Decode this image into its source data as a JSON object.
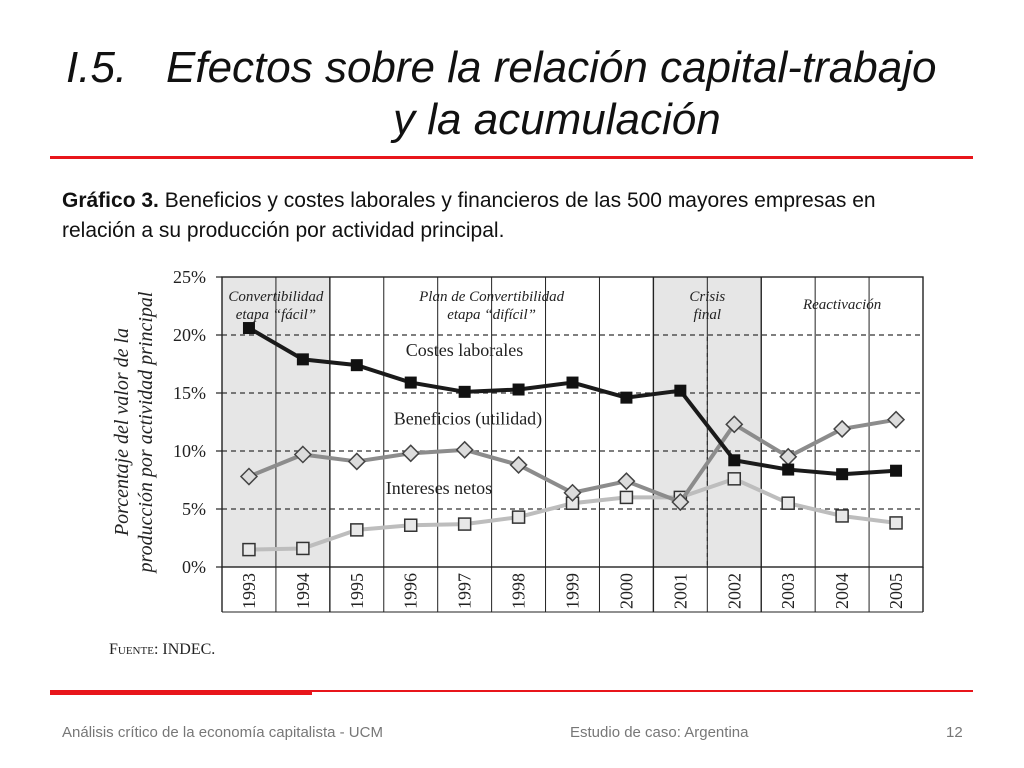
{
  "slide": {
    "title_number": "I.5.",
    "title_line1": "Efectos sobre la relación capital-trabajo",
    "title_line2": "y la acumulación",
    "caption_bold": "Gráfico 3.",
    "caption_text": " Beneficios y costes laborales y financieros de las 500 mayores empresas en relación a su producción por actividad principal.",
    "source_label": "Fuente",
    "source_value": ": INDEC.",
    "footer_left": "Análisis crítico de la economía capitalista - UCM",
    "footer_center": "Estudio de caso: Argentina",
    "footer_page": "12",
    "accent_color": "#e8151b"
  },
  "chart_data": {
    "type": "line",
    "title": "",
    "xlabel": "",
    "ylabel": "Porcentaje del valor de la producción por actividad principal",
    "ylabel_line1": "Porcentaje del valor de la",
    "ylabel_line2": "producción por actividad principal",
    "x": [
      "1993",
      "1994",
      "1995",
      "1996",
      "1997",
      "1998",
      "1999",
      "2000",
      "2001",
      "2002",
      "2003",
      "2004",
      "2005"
    ],
    "ylim": [
      0,
      25
    ],
    "yticks": [
      "0%",
      "5%",
      "10%",
      "15%",
      "20%",
      "25%"
    ],
    "grid": "dashed horizontal lines at 5% steps, solid vertical separators between years",
    "periods": [
      {
        "label1": "Convertibilidad",
        "label2": "etapa “fácil”",
        "start": "1993",
        "end": "1994",
        "shaded": true
      },
      {
        "label1": "Plan de Convertibilidad",
        "label2": "etapa “difícil”",
        "start": "1995",
        "end": "2000",
        "shaded": false
      },
      {
        "label1": "Crisis",
        "label2": "final",
        "start": "2001",
        "end": "2002",
        "shaded": true
      },
      {
        "label1": "Reactivación",
        "label2": "",
        "start": "2003",
        "end": "2005",
        "shaded": false
      }
    ],
    "series": [
      {
        "name": "Costes laborales",
        "color": "#1a1a1a",
        "marker": "filled-square",
        "values": [
          20.6,
          17.9,
          17.4,
          15.9,
          15.1,
          15.3,
          15.9,
          14.6,
          15.2,
          9.2,
          8.4,
          8.0,
          8.3
        ]
      },
      {
        "name": "Beneficios (utilidad)",
        "color": "#8c8c8c",
        "marker": "open-diamond",
        "values": [
          7.8,
          9.7,
          9.1,
          9.8,
          10.1,
          8.8,
          6.4,
          7.4,
          5.6,
          12.3,
          9.5,
          11.9,
          12.7
        ]
      },
      {
        "name": "Intereses netos",
        "color": "#bdbdbd",
        "marker": "open-square",
        "values": [
          1.5,
          1.6,
          3.2,
          3.6,
          3.7,
          4.3,
          5.5,
          6.0,
          6.0,
          7.6,
          5.5,
          4.4,
          3.8
        ]
      }
    ]
  }
}
